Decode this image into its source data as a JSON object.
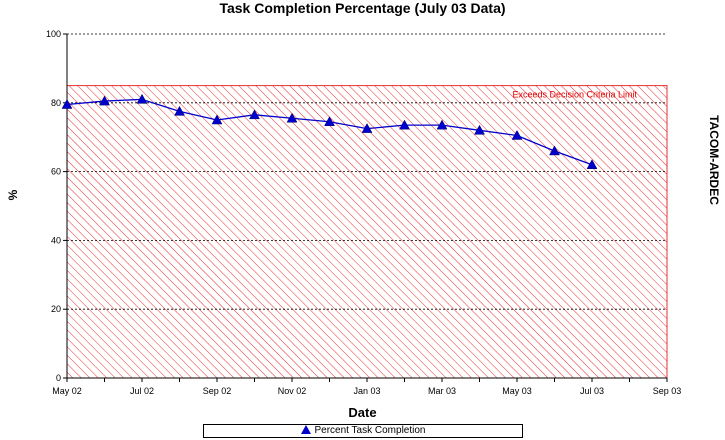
{
  "chart_data": {
    "type": "line",
    "title": "Task Completion Percentage (July 03 Data)",
    "xlabel": "Date",
    "ylabel": "%",
    "side_label": "TACOM-ARDEC",
    "ylim": [
      0,
      100
    ],
    "yticks": [
      0,
      20,
      40,
      60,
      80,
      100
    ],
    "xlim": [
      "2002-05",
      "2003-09"
    ],
    "xticks": [
      "May 02",
      "Jul 02",
      "Sep 02",
      "Nov 02",
      "Jan 03",
      "Mar 03",
      "May 03",
      "Jul 03",
      "Sep 03"
    ],
    "threshold": {
      "label": "Exceeds Decision Criteria Limit",
      "value": 85
    },
    "grid": true,
    "legend_position": "bottom",
    "series": [
      {
        "name": "Percent Task Completion",
        "color": "#0000cc",
        "x": [
          "2002-05",
          "2002-06",
          "2002-07",
          "2002-08",
          "2002-09",
          "2002-10",
          "2002-11",
          "2002-12",
          "2003-01",
          "2003-02",
          "2003-03",
          "2003-04",
          "2003-05",
          "2003-06",
          "2003-07"
        ],
        "values": [
          79.5,
          80.5,
          81,
          77.5,
          75,
          76.5,
          75.5,
          74.5,
          72.5,
          73.5,
          73.5,
          72,
          70.5,
          66,
          62
        ]
      }
    ]
  }
}
